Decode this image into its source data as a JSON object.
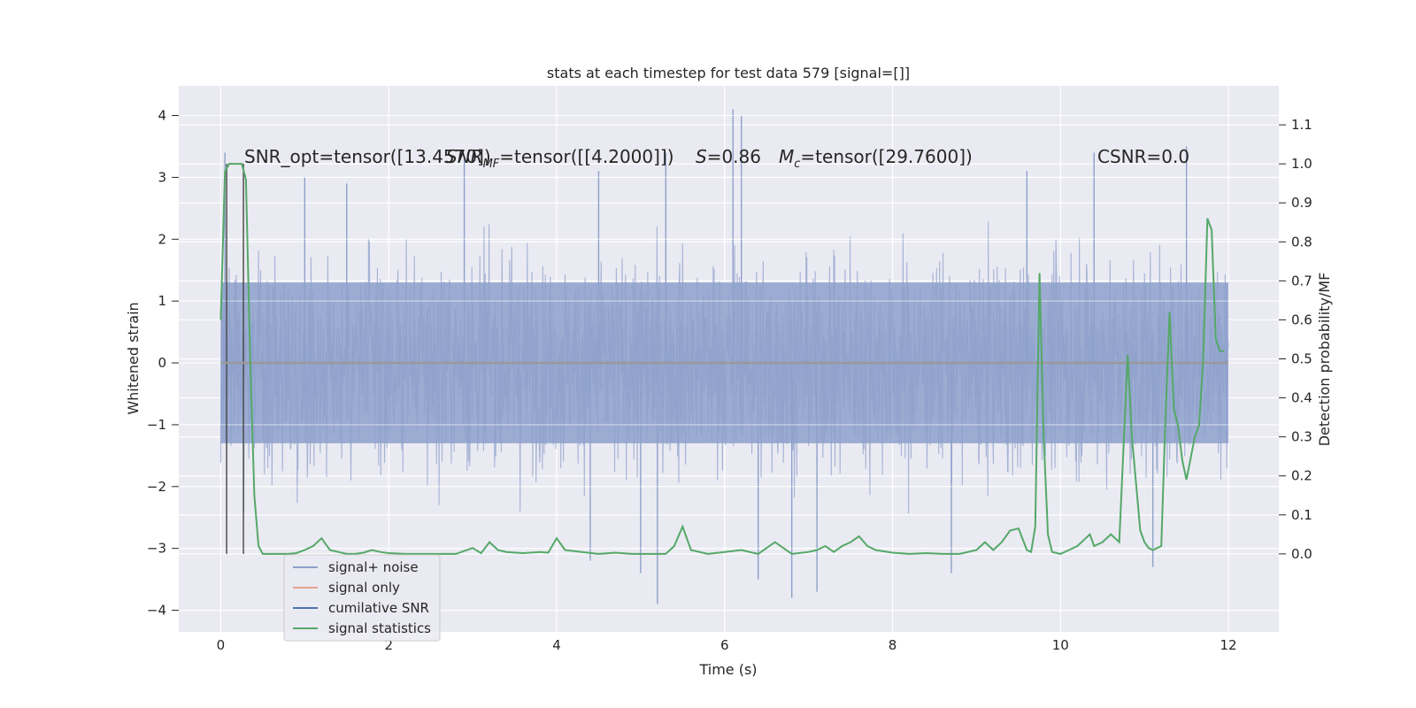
{
  "chart_data": {
    "type": "line",
    "title": "stats at each timestep for test data 579 [signal=[]]",
    "xlabel": "Time (s)",
    "ylabel": "Whitened strain",
    "y2label": "Detection probability/MF",
    "xlim": [
      -0.5,
      12.6
    ],
    "ylim": [
      -4.35,
      4.48
    ],
    "y2lim": [
      -0.2,
      1.2
    ],
    "x_ticks": [
      "0",
      "2",
      "4",
      "6",
      "8",
      "10",
      "12"
    ],
    "x_tick_values": [
      0,
      2,
      4,
      6,
      8,
      10,
      12
    ],
    "y_ticks": [
      "−4",
      "−3",
      "−2",
      "−1",
      "0",
      "1",
      "2",
      "3",
      "4"
    ],
    "y_tick_values": [
      -4,
      -3,
      -2,
      -1,
      0,
      1,
      2,
      3,
      4
    ],
    "y2_ticks": [
      "0.0",
      "0.1",
      "0.2",
      "0.3",
      "0.4",
      "0.5",
      "0.6",
      "0.7",
      "0.8",
      "0.9",
      "1.0",
      "1.1"
    ],
    "y2_tick_values": [
      0.0,
      0.1,
      0.2,
      0.3,
      0.4,
      0.5,
      0.6,
      0.7,
      0.8,
      0.9,
      1.0,
      1.1
    ],
    "grid": true,
    "legend_position": "lower-left",
    "annotations": {
      "snr_opt": "SNR_opt=tensor([13.4570])",
      "snr_mf_sym": "SNR",
      "snr_mf_sub": "MF",
      "snr_mf_val": "=tensor([[4.2000]])",
      "s_sym": "S",
      "s_val": "=0.86",
      "mc_sym": "M",
      "mc_sub": "c",
      "mc_val": "=tensor([29.7600])",
      "csnr": "CSNR=0.0"
    },
    "series": [
      {
        "name": "signal+ noise",
        "color": "#8da0cb",
        "description_values": "dense noise trace, envelope approx ±2 to ±3.5 across 0–12 s",
        "spikes_up": [
          [
            0.05,
            3.4
          ],
          [
            1.0,
            3.0
          ],
          [
            1.5,
            2.9
          ],
          [
            2.9,
            3.3
          ],
          [
            4.5,
            3.1
          ],
          [
            5.3,
            3.4
          ],
          [
            6.1,
            4.1
          ],
          [
            6.2,
            4.0
          ],
          [
            9.6,
            3.1
          ],
          [
            10.4,
            3.4
          ],
          [
            11.5,
            3.5
          ]
        ],
        "spikes_down": [
          [
            5.2,
            -3.9
          ],
          [
            6.8,
            -3.8
          ],
          [
            7.1,
            -3.7
          ],
          [
            6.4,
            -3.5
          ],
          [
            8.7,
            -3.4
          ],
          [
            5.0,
            -3.4
          ],
          [
            11.1,
            -3.3
          ],
          [
            4.4,
            -3.2
          ]
        ]
      },
      {
        "name": "signal only",
        "color": "#e5a58c",
        "values_note": "flat at 0",
        "x": [
          0,
          12
        ],
        "y": [
          0,
          0
        ]
      },
      {
        "name": "cumilative SNR",
        "color": "#4c72b0",
        "x": [],
        "y": []
      },
      {
        "name": "signal statistics",
        "color": "#55a868",
        "axis": "right",
        "x": [
          0.0,
          0.05,
          0.1,
          0.15,
          0.2,
          0.25,
          0.3,
          0.35,
          0.4,
          0.45,
          0.5,
          0.6,
          0.7,
          0.8,
          0.9,
          1.0,
          1.1,
          1.2,
          1.3,
          1.4,
          1.5,
          1.6,
          1.7,
          1.8,
          1.9,
          2.0,
          2.2,
          2.4,
          2.6,
          2.8,
          3.0,
          3.1,
          3.2,
          3.3,
          3.4,
          3.6,
          3.8,
          3.9,
          4.0,
          4.1,
          4.3,
          4.5,
          4.7,
          4.9,
          5.1,
          5.3,
          5.4,
          5.5,
          5.6,
          5.8,
          6.0,
          6.2,
          6.4,
          6.5,
          6.6,
          6.8,
          7.0,
          7.1,
          7.2,
          7.3,
          7.4,
          7.5,
          7.6,
          7.7,
          7.8,
          8.0,
          8.2,
          8.4,
          8.6,
          8.8,
          9.0,
          9.1,
          9.2,
          9.3,
          9.4,
          9.5,
          9.6,
          9.65,
          9.7,
          9.75,
          9.8,
          9.85,
          9.9,
          10.0,
          10.1,
          10.2,
          10.3,
          10.35,
          10.4,
          10.5,
          10.6,
          10.7,
          10.8,
          10.85,
          10.9,
          10.95,
          11.0,
          11.05,
          11.1,
          11.2,
          11.25,
          11.3,
          11.35,
          11.4,
          11.45,
          11.5,
          11.6,
          11.65,
          11.7,
          11.75,
          11.8,
          11.85,
          11.9,
          11.95
        ],
        "y": [
          0.6,
          0.98,
          1.0,
          1.0,
          1.0,
          1.0,
          0.96,
          0.5,
          0.15,
          0.02,
          0.0,
          0.0,
          0.0,
          0.0,
          0.002,
          0.01,
          0.02,
          0.04,
          0.01,
          0.005,
          0.0,
          0.0,
          0.003,
          0.01,
          0.005,
          0.002,
          0.0,
          0.0,
          0.0,
          0.0,
          0.015,
          0.002,
          0.03,
          0.01,
          0.005,
          0.002,
          0.005,
          0.003,
          0.04,
          0.01,
          0.005,
          0.0,
          0.003,
          0.0,
          0.0,
          0.0,
          0.02,
          0.07,
          0.01,
          0.0,
          0.005,
          0.01,
          0.0,
          0.015,
          0.03,
          0.0,
          0.005,
          0.01,
          0.02,
          0.005,
          0.02,
          0.03,
          0.045,
          0.02,
          0.01,
          0.003,
          0.0,
          0.002,
          0.0,
          0.0,
          0.01,
          0.03,
          0.01,
          0.03,
          0.06,
          0.065,
          0.01,
          0.005,
          0.07,
          0.72,
          0.3,
          0.05,
          0.005,
          0.0,
          0.01,
          0.02,
          0.04,
          0.05,
          0.02,
          0.03,
          0.05,
          0.03,
          0.51,
          0.3,
          0.18,
          0.06,
          0.03,
          0.015,
          0.01,
          0.02,
          0.35,
          0.62,
          0.37,
          0.33,
          0.24,
          0.19,
          0.3,
          0.33,
          0.5,
          0.86,
          0.83,
          0.55,
          0.52,
          0.52
        ],
        "marker_lines_x": [
          0.07,
          0.27
        ]
      }
    ]
  }
}
